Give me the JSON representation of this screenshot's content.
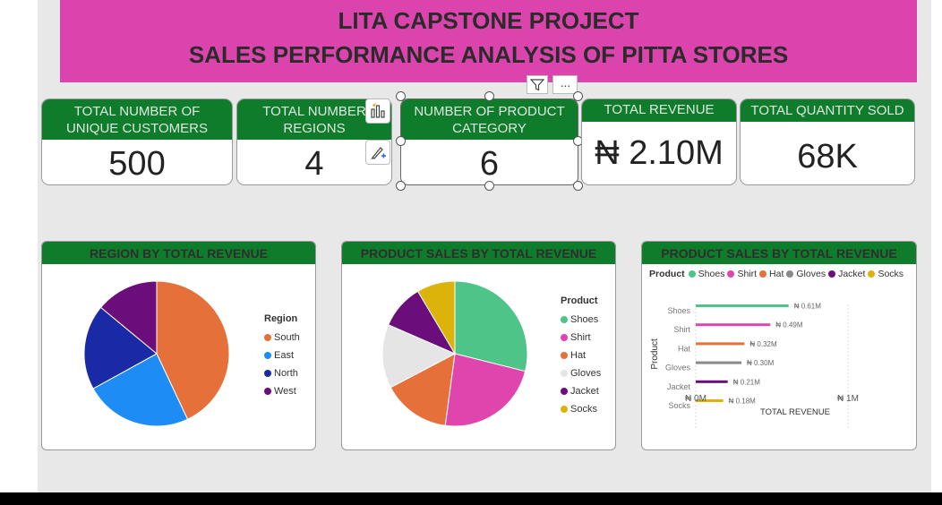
{
  "header": {
    "line1": "LITA CAPSTONE PROJECT",
    "line2": "SALES PERFORMANCE ANALYSIS OF PITTA STORES"
  },
  "cards": [
    {
      "label_line1": "TOTAL NUMBER OF",
      "label_line2": "UNIQUE CUSTOMERS",
      "value": "500"
    },
    {
      "label_line1": "TOTAL NUMBER",
      "label_line2": "REGIONS",
      "value": "4"
    },
    {
      "label_line1": "NUMBER OF PRODUCT",
      "label_line2": "CATEGORY",
      "value": "6"
    },
    {
      "label_line1": "TOTAL REVENUE",
      "label_line2": "",
      "value": "₦ 2.10M"
    },
    {
      "label_line1": "TOTAL QUANTITY SOLD",
      "label_line2": "",
      "value": "68K"
    }
  ],
  "toolbar": {
    "more_label": "···"
  },
  "colors": {
    "header": "#dc44ad",
    "card_caption": "#0e7c2b",
    "south": "#e5703a",
    "east": "#1e8cf5",
    "north": "#1a2aa6",
    "west": "#6b0d7a",
    "shoes": "#4ec489",
    "shirt": "#e045ad",
    "hat": "#e5703a",
    "gloves": "#e5e5e5",
    "jacket": "#6b0d7a",
    "socks": "#dcb30b"
  },
  "chart_data": [
    {
      "type": "pie",
      "title": "REGION BY TOTAL REVENUE",
      "legend_title": "Region",
      "legend_position": "right",
      "categories": [
        "South",
        "East",
        "North",
        "West"
      ],
      "values": [
        43,
        24,
        19,
        14
      ],
      "colors": [
        "#e5703a",
        "#1e8cf5",
        "#1a2aa6",
        "#6b0d7a"
      ]
    },
    {
      "type": "pie",
      "title": "PRODUCT SALES BY TOTAL REVENUE",
      "legend_title": "Product",
      "legend_position": "right",
      "categories": [
        "Shoes",
        "Shirt",
        "Hat",
        "Gloves",
        "Jacket",
        "Socks"
      ],
      "values": [
        0.61,
        0.49,
        0.32,
        0.3,
        0.21,
        0.18
      ],
      "colors": [
        "#4ec489",
        "#e045ad",
        "#e5703a",
        "#e5e5e5",
        "#6b0d7a",
        "#dcb30b"
      ]
    },
    {
      "type": "bar",
      "orientation": "horizontal",
      "title": "PRODUCT SALES BY TOTAL REVENUE",
      "legend_title": "Product",
      "legend_position": "top",
      "categories": [
        "Shoes",
        "Shirt",
        "Hat",
        "Gloves",
        "Jacket",
        "Socks"
      ],
      "values": [
        0.61,
        0.49,
        0.32,
        0.3,
        0.21,
        0.18
      ],
      "data_labels": [
        "₦ 0.61M",
        "₦ 0.49M",
        "₦ 0.32M",
        "₦ 0.30M",
        "₦ 0.21M",
        "₦ 0.18M"
      ],
      "colors": [
        "#4ec489",
        "#e045ad",
        "#e5703a",
        "#8a8a8a",
        "#6b0d7a",
        "#dcb30b"
      ],
      "xlabel": "TOTAL REVENUE",
      "ylabel": "Product",
      "xlim": [
        0,
        1
      ],
      "xticks": [
        "₦ 0M",
        "₦ 1M"
      ],
      "grid": true
    }
  ]
}
